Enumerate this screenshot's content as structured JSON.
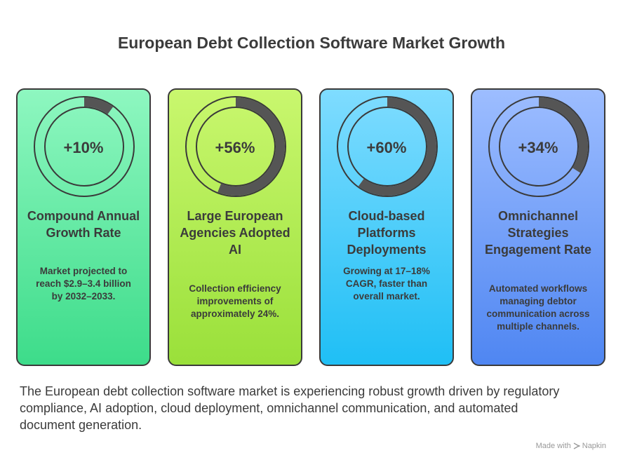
{
  "title": "European Debt Collection Software Market Growth",
  "cards": [
    {
      "value": "+10%",
      "percent": 10,
      "heading": "Compound Annual Growth Rate",
      "description": "Market projected to reach $2.9–3.4 billion by 2032–2033.",
      "color_top": "#8ef7c0",
      "color_bottom": "#3ddc8a"
    },
    {
      "value": "+56%",
      "percent": 56,
      "heading": "Large European Agencies Adopted AI",
      "description": "Collection efficiency improvements of approximately 24%.",
      "color_top": "#c9f76e",
      "color_bottom": "#9ae03a"
    },
    {
      "value": "+60%",
      "percent": 60,
      "heading": "Cloud-based Platforms Deployments",
      "description": "Growing at 17–18% CAGR, faster than overall market.",
      "color_top": "#7fdcff",
      "color_bottom": "#1fbff5"
    },
    {
      "value": "+34%",
      "percent": 34,
      "heading": "Omnichannel Strategies Engagement Rate",
      "description": "Automated workflows managing debtor communication across multiple channels.",
      "color_top": "#9dbdff",
      "color_bottom": "#4f86f2"
    }
  ],
  "summary": "The European debt collection software market is experiencing robust growth driven by regulatory compliance, AI adoption, cloud deployment, omnichannel communication, and automated document generation.",
  "credit": {
    "made_with": "Made with",
    "brand": "Napkin"
  }
}
